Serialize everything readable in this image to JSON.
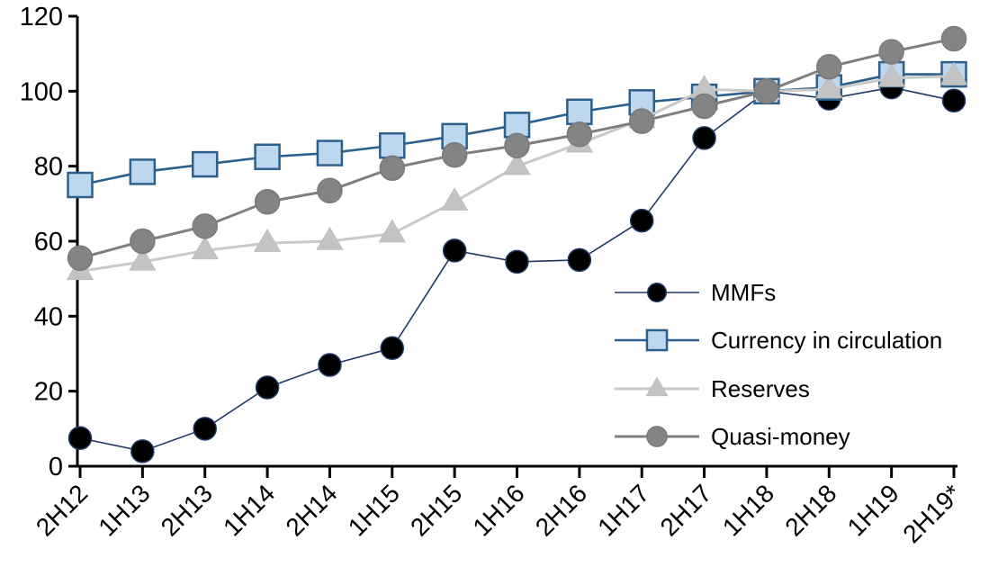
{
  "chart_data": {
    "type": "line",
    "title": "",
    "xlabel": "",
    "ylabel": "",
    "ylim": [
      0,
      120
    ],
    "y_ticks": [
      0,
      20,
      40,
      60,
      80,
      100,
      120
    ],
    "grid": false,
    "legend_position": "inside-right",
    "categories": [
      "2H12",
      "1H13",
      "2H13",
      "1H14",
      "2H14",
      "1H15",
      "2H15",
      "1H16",
      "2H16",
      "1H17",
      "2H17",
      "1H18",
      "2H18",
      "1H19",
      "2H19*"
    ],
    "series": [
      {
        "name": "MMFs",
        "marker": "circle",
        "line_color": "#1f3864",
        "marker_fill": "#000000",
        "marker_stroke": "#1f3864",
        "line_width": 1.6,
        "marker_size": 25,
        "values": [
          7.5,
          4,
          10,
          21,
          27,
          31.5,
          57.5,
          54.5,
          55,
          65.5,
          87.5,
          100,
          98,
          101,
          97.5
        ]
      },
      {
        "name": "Currency in circulation",
        "marker": "square",
        "line_color": "#2d5f8c",
        "marker_fill": "#bdd7ee",
        "marker_stroke": "#2d5f8c",
        "line_width": 2.6,
        "marker_size": 27,
        "values": [
          75,
          78.5,
          80.5,
          82.5,
          83.5,
          85.5,
          88,
          91,
          94.5,
          97,
          98.5,
          100,
          101,
          104.5,
          104.5
        ]
      },
      {
        "name": "Reserves",
        "marker": "triangle",
        "line_color": "#c9c9c9",
        "marker_fill": "#c3c3c3",
        "marker_stroke": "#bcbcbc",
        "line_width": 3,
        "marker_size": 29,
        "values": [
          52,
          54.5,
          57.5,
          59.5,
          60,
          62,
          70.5,
          80,
          86,
          92.5,
          100.5,
          100,
          100.5,
          103.5,
          104
        ]
      },
      {
        "name": "Quasi-money",
        "marker": "circle",
        "line_color": "#7f7f7f",
        "marker_fill": "#848484",
        "marker_stroke": "#7a7a7a",
        "line_width": 3,
        "marker_size": 27,
        "values": [
          55.5,
          60,
          64,
          70.5,
          73.5,
          79.5,
          83,
          85.5,
          88.5,
          92,
          96,
          100,
          106.5,
          110.5,
          114
        ]
      }
    ]
  }
}
